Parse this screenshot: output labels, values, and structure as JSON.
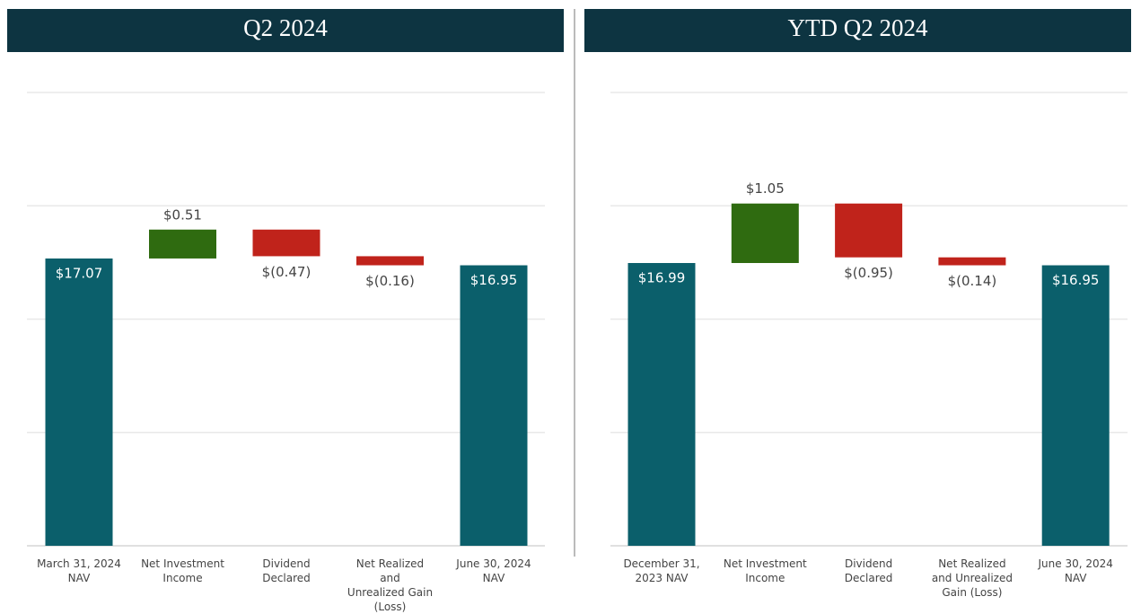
{
  "chart_data": [
    {
      "type": "waterfall",
      "title": "Q2 2024",
      "categories": [
        "March 31, 2024\nNAV",
        "Net Investment\nIncome",
        "Dividend\nDeclared",
        "Net Realized\nand\nUnrealized Gain\n(Loss)",
        "June 30, 2024\nNAV"
      ],
      "values": [
        17.07,
        0.51,
        -0.47,
        -0.16,
        16.95
      ],
      "value_labels": [
        "$17.07",
        "$0.51",
        "$(0.47)",
        "$(0.16)",
        "$16.95"
      ],
      "measure": [
        "absolute",
        "relative",
        "relative",
        "relative",
        "absolute"
      ],
      "colors": [
        "#0b5f6b",
        "#2f6b10",
        "#c0231b",
        "#c0231b",
        "#0b5f6b"
      ],
      "ylim": [
        12,
        20
      ],
      "yticks": [
        12,
        14,
        16,
        18,
        20
      ],
      "grid": true
    },
    {
      "type": "waterfall",
      "title": "YTD Q2 2024",
      "categories": [
        "December 31,\n2023 NAV",
        "Net Investment\nIncome",
        "Dividend\nDeclared",
        "Net Realized\nand Unrealized\nGain (Loss)",
        "June 30, 2024\nNAV"
      ],
      "values": [
        16.99,
        1.05,
        -0.95,
        -0.14,
        16.95
      ],
      "value_labels": [
        "$16.99",
        "$1.05",
        "$(0.95)",
        "$(0.14)",
        "$16.95"
      ],
      "measure": [
        "absolute",
        "relative",
        "relative",
        "relative",
        "absolute"
      ],
      "colors": [
        "#0b5f6b",
        "#2f6b10",
        "#c0231b",
        "#c0231b",
        "#0b5f6b"
      ],
      "ylim": [
        12,
        20
      ],
      "yticks": [
        12,
        14,
        16,
        18,
        20
      ],
      "grid": true
    }
  ]
}
